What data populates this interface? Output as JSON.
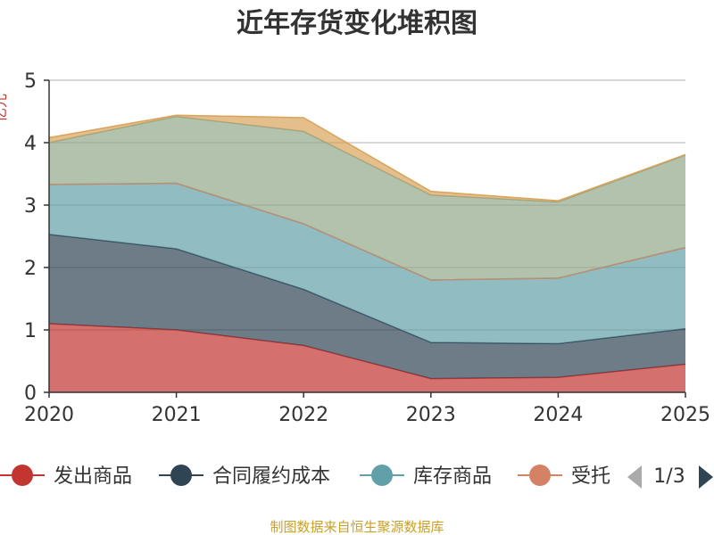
{
  "chart_data": {
    "type": "area",
    "stacked": true,
    "title": "近年存货变化堆积图",
    "ylabel": "亿元",
    "x": [
      "2020",
      "2021",
      "2022",
      "2023",
      "2024",
      "2025"
    ],
    "ylim": [
      0,
      5
    ],
    "yticks": [
      "0",
      "1",
      "2",
      "3",
      "4",
      "5"
    ],
    "grid": true,
    "series": [
      {
        "name": "发出商品",
        "color": "#c23531",
        "values": [
          1.1,
          1.0,
          0.75,
          0.22,
          0.24,
          0.45
        ]
      },
      {
        "name": "合同履约成本",
        "color": "#2f4554",
        "values": [
          1.43,
          1.3,
          0.9,
          0.58,
          0.54,
          0.57
        ]
      },
      {
        "name": "库存商品",
        "color": "#61a0a8",
        "values": [
          0.8,
          1.05,
          1.05,
          1.0,
          1.05,
          1.3
        ]
      },
      {
        "name": "受托",
        "color": "#d48265",
        "values": [
          0.0,
          0.0,
          0.0,
          0.0,
          0.0,
          0.0
        ]
      },
      {
        "name": "",
        "color": "#91a88a",
        "values": [
          0.67,
          1.07,
          1.48,
          1.36,
          1.22,
          1.48
        ]
      },
      {
        "name": "",
        "color": "#d9a35a",
        "values": [
          0.08,
          0.02,
          0.22,
          0.06,
          0.02,
          0.01
        ]
      }
    ],
    "legend": {
      "placement": "bottom",
      "items": [
        "发出商品",
        "合同履约成本",
        "库存商品",
        "受托"
      ],
      "page": "1/3"
    }
  },
  "source": "制图数据来自恒生聚源数据库",
  "icons": {
    "prev": "triangle-left-icon",
    "next": "triangle-right-icon"
  }
}
